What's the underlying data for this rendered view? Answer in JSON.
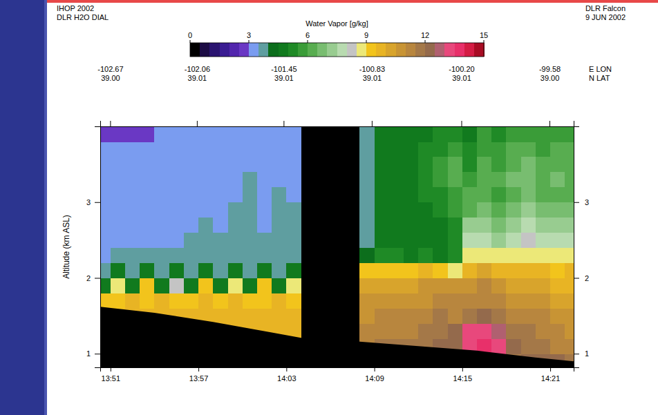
{
  "chart_data": {
    "type": "heatmap",
    "header_left": [
      "IHOP 2002",
      "DLR H2O DIAL"
    ],
    "header_right": [
      "DLR Falcon",
      "9 JUN 2002"
    ],
    "ylabel": "Altitude (km ASL)",
    "colorbar": {
      "title": "Water Vapor [g/kg]",
      "range": [
        0,
        15
      ],
      "ticks": [
        0,
        3,
        6,
        9,
        12,
        15
      ]
    },
    "xlim": [
      830.3,
      862.6
    ],
    "xticks": [
      {
        "value": 831,
        "label": "13:51"
      },
      {
        "value": 837,
        "label": "13:57"
      },
      {
        "value": 843,
        "label": "14:03"
      },
      {
        "value": 849,
        "label": "14:09"
      },
      {
        "value": 855,
        "label": "14:15"
      },
      {
        "value": 861,
        "label": "14:21"
      }
    ],
    "ylim": [
      0.82,
      4.0
    ],
    "yticks": [
      1,
      2,
      3
    ],
    "x2lim": [
      -102.74,
      -99.41
    ],
    "x2ticks": [
      -102.67,
      -102.06,
      -101.45,
      -100.83,
      {
        "value": -100.2,
        "label": "-100.20"
      },
      -99.58
    ],
    "x2_sublabels": [
      {
        "value": 39.0,
        "label": "39.00"
      },
      {
        "value": 39.01,
        "label": "39.01"
      },
      {
        "value": 39.01,
        "label": "39.01"
      },
      {
        "value": 39.01,
        "label": "39.01"
      },
      {
        "value": 39.01,
        "label": "39.01"
      },
      {
        "value": 39.0,
        "label": "39.00"
      }
    ],
    "x2_title": [
      "E LON",
      "N LAT"
    ],
    "x_edges": [
      830.3,
      831,
      832,
      833,
      834,
      835,
      836,
      837,
      838,
      839,
      840,
      841,
      842,
      843,
      844,
      845,
      846,
      847,
      848,
      849,
      850,
      851,
      852,
      853,
      854,
      855,
      856,
      857,
      858,
      859,
      860,
      861,
      862,
      862.6
    ],
    "y_edges": [
      0.82,
      1.0,
      1.2,
      1.4,
      1.6,
      1.8,
      2.0,
      2.2,
      2.4,
      2.6,
      2.8,
      3.0,
      3.2,
      3.4,
      3.6,
      3.8,
      4.0
    ],
    "cells": [
      [
        null,
        null,
        null,
        null,
        null,
        null,
        null,
        null,
        null,
        null,
        null,
        null,
        null,
        null,
        null,
        null,
        null,
        null,
        null,
        null,
        null,
        null,
        null,
        null,
        null,
        null,
        null,
        null,
        11.8,
        12.0,
        12.2,
        12.0,
        11.8
      ],
      [
        null,
        null,
        null,
        null,
        null,
        null,
        null,
        null,
        null,
        null,
        null,
        null,
        null,
        null,
        null,
        null,
        null,
        null,
        11.2,
        11.5,
        11.8,
        11.5,
        11.6,
        12.0,
        12.3,
        13.2,
        13.5,
        13.2,
        12.2,
        11.8,
        11.5,
        11.2,
        11.0
      ],
      [
        null,
        null,
        null,
        null,
        null,
        null,
        null,
        null,
        9.6,
        9.8,
        9.7,
        9.9,
        9.6,
        9.8,
        null,
        null,
        null,
        null,
        11.0,
        11.2,
        11.4,
        11.2,
        11.5,
        11.8,
        12.0,
        13.0,
        13.4,
        12.6,
        11.8,
        11.5,
        11.2,
        11.0,
        10.8
      ],
      [
        9.6,
        9.8,
        9.7,
        9.9,
        9.6,
        9.8,
        9.7,
        9.9,
        9.6,
        9.8,
        9.7,
        9.9,
        9.6,
        9.8,
        null,
        null,
        null,
        null,
        10.8,
        11.0,
        11.2,
        11.0,
        11.3,
        11.5,
        11.4,
        11.8,
        12.0,
        11.6,
        11.4,
        11.2,
        11.0,
        10.8,
        10.6
      ],
      [
        9.2,
        9.4,
        9.5,
        9.3,
        9.6,
        9.4,
        9.2,
        9.5,
        9.3,
        9.6,
        9.4,
        9.2,
        9.5,
        9.4,
        null,
        null,
        null,
        null,
        10.5,
        10.6,
        10.8,
        10.6,
        10.9,
        11.0,
        11.0,
        11.2,
        11.4,
        11.0,
        10.8,
        10.6,
        10.5,
        10.4,
        10.2
      ],
      [
        4.6,
        8.6,
        4.8,
        9.0,
        4.5,
        8.4,
        4.7,
        9.1,
        4.6,
        8.5,
        4.8,
        9.0,
        4.5,
        8.6,
        null,
        null,
        null,
        null,
        10.0,
        10.2,
        10.4,
        10.2,
        10.5,
        10.6,
        10.8,
        10.9,
        11.0,
        10.6,
        10.4,
        10.2,
        10.0,
        9.9,
        9.8
      ],
      [
        3.8,
        4.6,
        3.7,
        4.8,
        3.9,
        4.5,
        3.8,
        4.7,
        3.9,
        4.5,
        3.8,
        4.6,
        3.9,
        4.7,
        null,
        null,
        null,
        null,
        9.2,
        9.4,
        9.3,
        9.0,
        9.5,
        9.3,
        8.6,
        9.8,
        10.0,
        9.8,
        9.6,
        9.7,
        9.5,
        9.4,
        9.6
      ],
      [
        3.4,
        3.7,
        3.5,
        3.8,
        3.6,
        3.7,
        3.8,
        3.6,
        3.9,
        3.7,
        3.8,
        3.6,
        3.8,
        3.7,
        null,
        null,
        null,
        null,
        4.4,
        5.0,
        5.2,
        4.8,
        5.1,
        4.9,
        5.3,
        8.8,
        8.6,
        8.9,
        8.7,
        8.5,
        8.8,
        8.6,
        8.9
      ],
      [
        3.3,
        3.2,
        3.4,
        3.3,
        3.2,
        3.4,
        3.6,
        3.7,
        3.6,
        3.7,
        3.6,
        3.7,
        3.6,
        3.7,
        null,
        null,
        null,
        null,
        3.9,
        4.6,
        4.7,
        4.5,
        4.8,
        4.6,
        5.0,
        7.6,
        7.8,
        7.4,
        7.7,
        8.0,
        7.5,
        7.8,
        7.6
      ],
      [
        3.2,
        3.3,
        3.2,
        3.3,
        3.2,
        3.2,
        3.3,
        3.6,
        3.2,
        3.7,
        3.6,
        3.3,
        3.7,
        3.6,
        null,
        null,
        null,
        null,
        3.8,
        4.5,
        4.6,
        4.7,
        4.6,
        4.8,
        5.2,
        7.0,
        7.2,
        6.8,
        7.3,
        7.5,
        7.0,
        7.2,
        7.1
      ],
      [
        3.2,
        3.2,
        3.3,
        3.2,
        3.2,
        3.3,
        3.2,
        3.3,
        3.2,
        3.6,
        3.7,
        3.3,
        3.6,
        3.7,
        null,
        null,
        null,
        null,
        3.8,
        4.6,
        4.7,
        4.5,
        4.9,
        5.0,
        5.6,
        6.4,
        6.6,
        6.2,
        6.8,
        7.0,
        6.5,
        6.7,
        6.6
      ],
      [
        3.2,
        3.2,
        3.2,
        3.3,
        3.2,
        3.2,
        3.2,
        3.2,
        3.3,
        3.2,
        3.6,
        3.3,
        3.6,
        3.2,
        null,
        null,
        null,
        null,
        3.7,
        4.7,
        4.8,
        4.6,
        5.0,
        5.4,
        5.9,
        6.0,
        6.2,
        5.8,
        6.4,
        6.6,
        6.2,
        6.4,
        6.2
      ],
      [
        3.2,
        3.2,
        3.2,
        3.3,
        3.2,
        3.2,
        3.2,
        3.3,
        3.2,
        3.2,
        3.6,
        3.2,
        3.2,
        3.3,
        null,
        null,
        null,
        null,
        3.8,
        4.8,
        4.6,
        4.9,
        5.2,
        5.8,
        6.2,
        5.6,
        6.4,
        6.0,
        6.6,
        6.8,
        6.4,
        6.6,
        6.4
      ],
      [
        3.2,
        3.3,
        3.2,
        3.2,
        3.2,
        3.3,
        3.2,
        3.2,
        3.2,
        3.3,
        3.2,
        3.2,
        3.3,
        3.2,
        null,
        null,
        null,
        null,
        3.9,
        4.7,
        4.9,
        4.7,
        5.3,
        5.6,
        6.0,
        5.4,
        6.2,
        5.8,
        6.4,
        6.6,
        6.2,
        6.4,
        6.2
      ],
      [
        3.2,
        3.2,
        3.2,
        3.2,
        3.3,
        3.2,
        3.2,
        3.2,
        3.3,
        3.2,
        3.2,
        3.3,
        3.2,
        3.2,
        null,
        null,
        null,
        null,
        3.8,
        4.6,
        4.8,
        4.6,
        5.1,
        5.3,
        5.7,
        5.2,
        5.9,
        5.6,
        6.1,
        6.3,
        5.9,
        6.1,
        6.0
      ],
      [
        2.8,
        2.6,
        2.8,
        2.7,
        3.2,
        3.2,
        3.2,
        3.2,
        3.2,
        3.2,
        3.2,
        3.2,
        3.2,
        3.2,
        null,
        null,
        null,
        null,
        3.7,
        4.5,
        4.6,
        4.5,
        4.8,
        5.0,
        5.3,
        4.9,
        5.5,
        5.2,
        5.6,
        5.8,
        5.5,
        5.6,
        5.5
      ]
    ],
    "ground": {
      "x": [
        830.3,
        834,
        838,
        842,
        844,
        848,
        852,
        856,
        860,
        862.6
      ],
      "values": [
        1.62,
        1.54,
        1.42,
        1.28,
        1.21,
        1.16,
        1.1,
        1.04,
        0.95,
        0.9
      ]
    }
  }
}
